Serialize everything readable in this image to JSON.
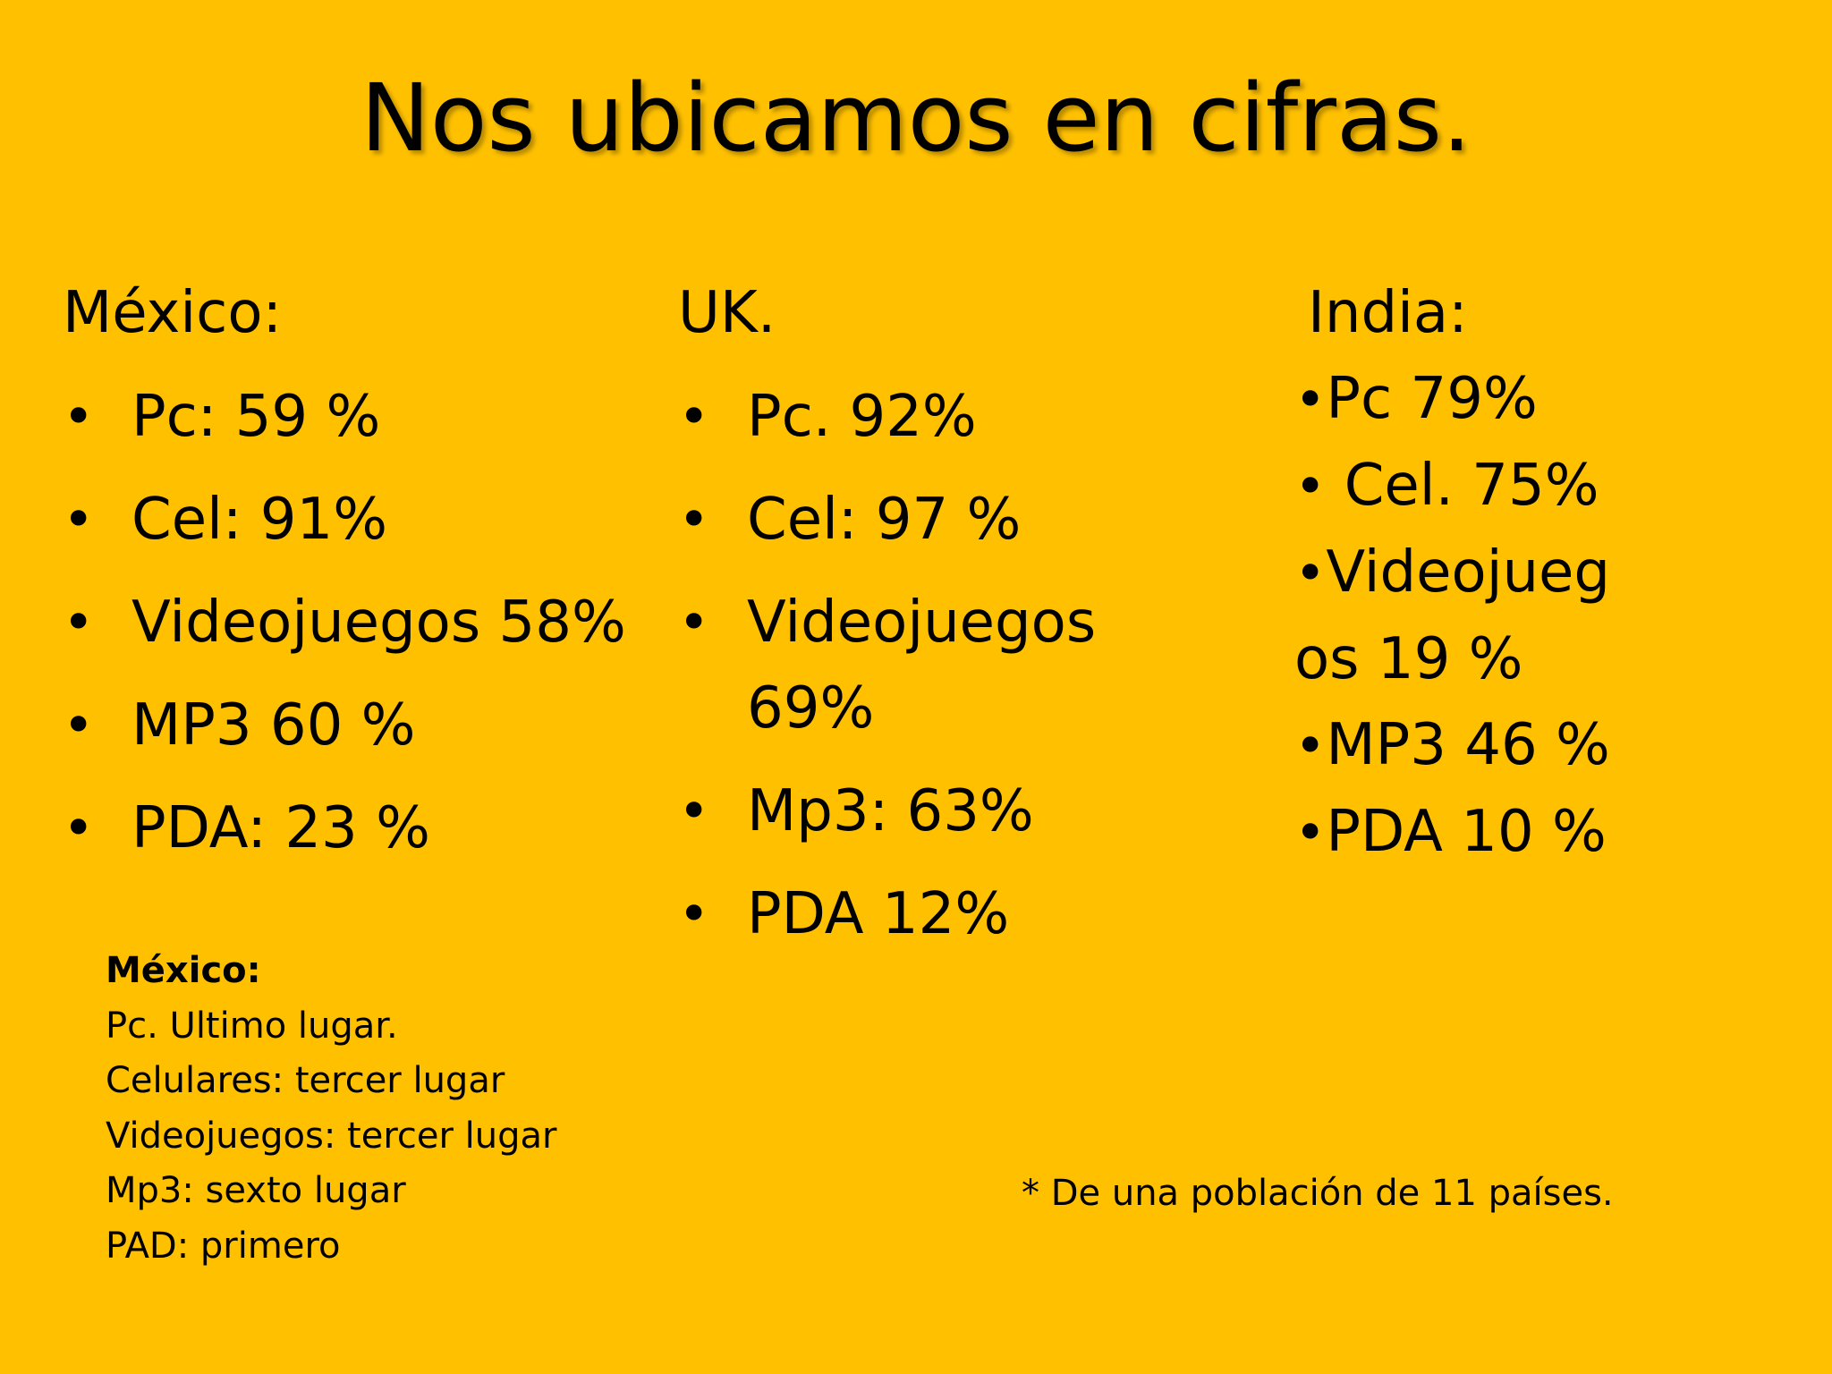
{
  "title": "Nos ubicamos en cifras.",
  "columns": {
    "mexico": {
      "heading": "México:",
      "items": [
        "Pc: 59 %",
        "Cel: 91%",
        "Videojuegos 58%",
        "MP3 60 %",
        "PDA: 23 %"
      ]
    },
    "uk": {
      "heading": "UK.",
      "items": [
        "Pc. 92%",
        "Cel: 97 %",
        "Videojuegos 69%",
        "Mp3: 63%",
        "PDA 12%"
      ]
    },
    "india": {
      "heading": "India:",
      "items": [
        "Pc 79%",
        " Cel. 75%",
        "Videojuegos 19 %",
        "MP3 46 %",
        "PDA 10 %"
      ]
    }
  },
  "bullet": "•",
  "note": {
    "title": "México:",
    "lines": [
      "Pc. Ultimo lugar.",
      "Celulares: tercer lugar",
      "Videojuegos: tercer lugar",
      "Mp3: sexto lugar",
      "PAD: primero"
    ]
  },
  "footnote": "* De una población de 11 países.",
  "colors": {
    "background": "#FFC000",
    "text": "#000000"
  }
}
